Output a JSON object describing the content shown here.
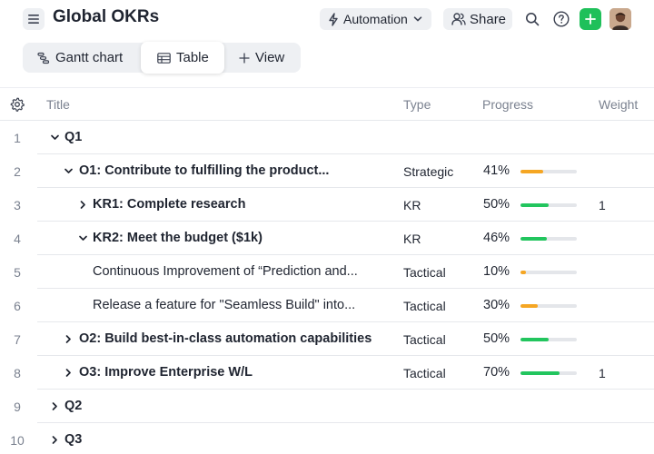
{
  "header": {
    "title": "Global OKRs",
    "automation_label": "Automation",
    "share_label": "Share",
    "icons": [
      "hamburger-menu-icon",
      "lightning-icon",
      "chevron-down-icon",
      "people-icon",
      "search-icon",
      "help-icon",
      "plus-icon"
    ]
  },
  "tabs": [
    {
      "label": "Gantt chart",
      "icon": "gantt-icon"
    },
    {
      "label": "Table",
      "icon": "table-icon",
      "selected": true
    },
    {
      "label": "View",
      "icon": "plus-icon"
    }
  ],
  "columns": {
    "title": "Title",
    "type": "Type",
    "progress": "Progress",
    "weight": "Weight"
  },
  "colors": {
    "accent_green": "#1fc05a",
    "progress_green": "#22c55e",
    "progress_orange": "#f5a623",
    "track": "#e4e6ea",
    "muted_text": "#7b8290"
  },
  "rows": [
    {
      "num": "1",
      "level": 0,
      "chevron": "down",
      "title": "Q1",
      "bold": true,
      "type": "",
      "progress_text": "",
      "progress": null,
      "color": "",
      "weight": ""
    },
    {
      "num": "2",
      "level": 1,
      "chevron": "down",
      "title": "O1: Contribute to fulfilling the product...",
      "bold": true,
      "type": "Strategic",
      "progress_text": "41%",
      "progress": 0.41,
      "color": "orange",
      "weight": ""
    },
    {
      "num": "3",
      "level": 2,
      "chevron": "right",
      "title": "KR1: Complete research",
      "bold": true,
      "type": "KR",
      "progress_text": "50%",
      "progress": 0.5,
      "color": "green",
      "weight": "1"
    },
    {
      "num": "4",
      "level": 2,
      "chevron": "down",
      "title": "KR2: Meet the budget ($1k)",
      "bold": true,
      "type": "KR",
      "progress_text": "46%",
      "progress": 0.46,
      "color": "green",
      "weight": ""
    },
    {
      "num": "5",
      "level": 3,
      "chevron": "",
      "title": "Continuous Improvement of “Prediction and...",
      "bold": false,
      "type": "Tactical",
      "progress_text": "10%",
      "progress": 0.1,
      "color": "orange",
      "weight": ""
    },
    {
      "num": "6",
      "level": 3,
      "chevron": "",
      "title": "Release a feature for \"Seamless Build\" into...",
      "bold": false,
      "type": "Tactical",
      "progress_text": "30%",
      "progress": 0.3,
      "color": "orange",
      "weight": ""
    },
    {
      "num": "7",
      "level": 1,
      "chevron": "right",
      "title": "O2: Build best-in-class automation capabilities",
      "bold": true,
      "type": "Tactical",
      "progress_text": "50%",
      "progress": 0.5,
      "color": "green",
      "weight": ""
    },
    {
      "num": "8",
      "level": 1,
      "chevron": "right",
      "title": "O3: Improve Enterprise W/L",
      "bold": true,
      "type": "Tactical",
      "progress_text": "70%",
      "progress": 0.7,
      "color": "green",
      "weight": "1"
    },
    {
      "num": "9",
      "level": 0,
      "chevron": "right",
      "title": "Q2",
      "bold": true,
      "type": "",
      "progress_text": "",
      "progress": null,
      "color": "",
      "weight": ""
    },
    {
      "num": "10",
      "level": 0,
      "chevron": "right",
      "title": "Q3",
      "bold": true,
      "type": "",
      "progress_text": "",
      "progress": null,
      "color": "",
      "weight": ""
    }
  ]
}
